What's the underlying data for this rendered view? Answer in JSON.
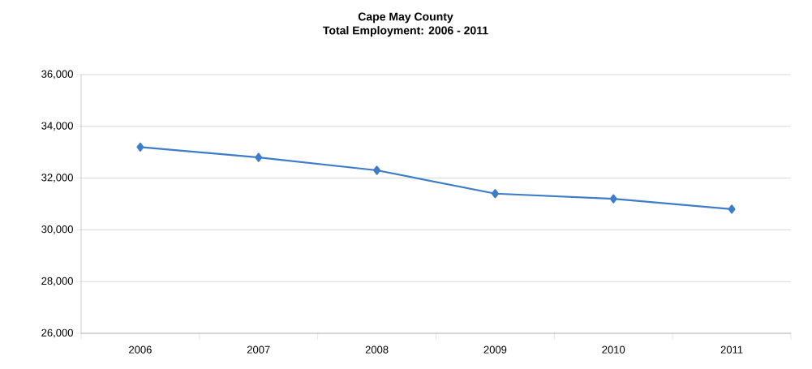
{
  "chart_data": {
    "type": "line",
    "title": "Cape May County",
    "subtitle": "Total Employment: 2006 - 2011",
    "categories": [
      "2006",
      "2007",
      "2008",
      "2009",
      "2010",
      "2011"
    ],
    "series": [
      {
        "color": "#3d7cc9",
        "values": [
          33200,
          32800,
          32300,
          31400,
          31200,
          30800
        ]
      }
    ],
    "ylim": [
      26000,
      36000
    ],
    "yticks": [
      {
        "value": 26000,
        "label": "26,000"
      },
      {
        "value": 28000,
        "label": "28,000"
      },
      {
        "value": 30000,
        "label": "30,000"
      },
      {
        "value": 32000,
        "label": "32,000"
      },
      {
        "value": 34000,
        "label": "34,000"
      },
      {
        "value": 36000,
        "label": "36,000"
      }
    ],
    "grid": "y",
    "marker": "diamond",
    "line_style": "solid"
  }
}
